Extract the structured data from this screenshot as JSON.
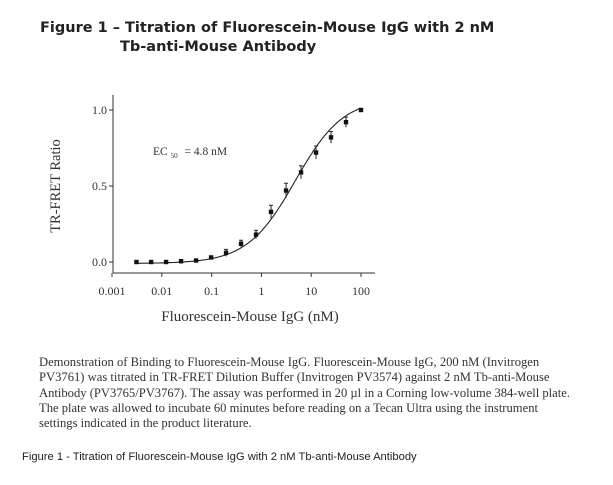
{
  "figure_title": {
    "line1": "Figure 1 – Titration of Fluorescein-Mouse IgG with 2 nM",
    "line2": "Tb-anti-Mouse Antibody"
  },
  "chart_data": {
    "type": "scatter",
    "title": "Figure 1 – Titration of Fluorescein-Mouse IgG with 2 nM Tb-anti-Mouse Antibody",
    "xlabel": "Fluorescein-Mouse IgG (nM)",
    "ylabel": "TR-FRET Ratio",
    "xscale": "log",
    "xlim": [
      0.001,
      150
    ],
    "ylim": [
      -0.1,
      1.1
    ],
    "xticks": [
      0.001,
      0.01,
      0.1,
      1,
      10,
      100
    ],
    "xtick_labels": [
      "0.001",
      "0.01",
      "0.1",
      "1",
      "10",
      "100"
    ],
    "yticks": [
      0.0,
      0.5,
      1.0
    ],
    "ytick_labels": [
      "0.0",
      "0.5",
      "1.0"
    ],
    "annotation": {
      "label": "EC",
      "subscript": "50",
      "value": "= 4.8 nM"
    },
    "ec50": 4.8,
    "grid": false,
    "series": [
      {
        "name": "Fluorescein-Mouse IgG",
        "x": [
          0.0031,
          0.0061,
          0.0122,
          0.0244,
          0.0488,
          0.0977,
          0.195,
          0.39,
          0.78,
          1.56,
          3.125,
          6.25,
          12.5,
          25,
          50,
          100
        ],
        "y": [
          0.0,
          0.0,
          0.0,
          0.005,
          0.01,
          0.03,
          0.06,
          0.12,
          0.18,
          0.33,
          0.47,
          0.59,
          0.72,
          0.82,
          0.92,
          1.0
        ],
        "err": [
          0,
          0,
          0,
          0,
          0,
          0.005,
          0.01,
          0.01,
          0.015,
          0.03,
          0.035,
          0.03,
          0.03,
          0.025,
          0.02,
          0.005
        ]
      }
    ],
    "fit": {
      "model": "sigmoidal",
      "bottom": -0.01,
      "top": 1.08,
      "ec50": 4.8,
      "hill": 0.9
    }
  },
  "description": "Demonstration of Binding to Fluorescein-Mouse IgG. Fluorescein-Mouse IgG, 200 nM (Invitrogen PV3761) was titrated in TR-FRET Dilution Buffer (Invitrogen PV3574) against 2 nM Tb-anti-Mouse Antibody (PV3765/PV3767).  The assay was performed in 20 µl in a Corning low-volume 384-well plate. The plate was allowed to incubate 60 minutes before reading on a Tecan Ultra using the instrument settings indicated in the product literature.",
  "caption": "Figure 1 - Titration of Fluorescein-Mouse IgG with 2 nM Tb-anti-Mouse Antibody"
}
